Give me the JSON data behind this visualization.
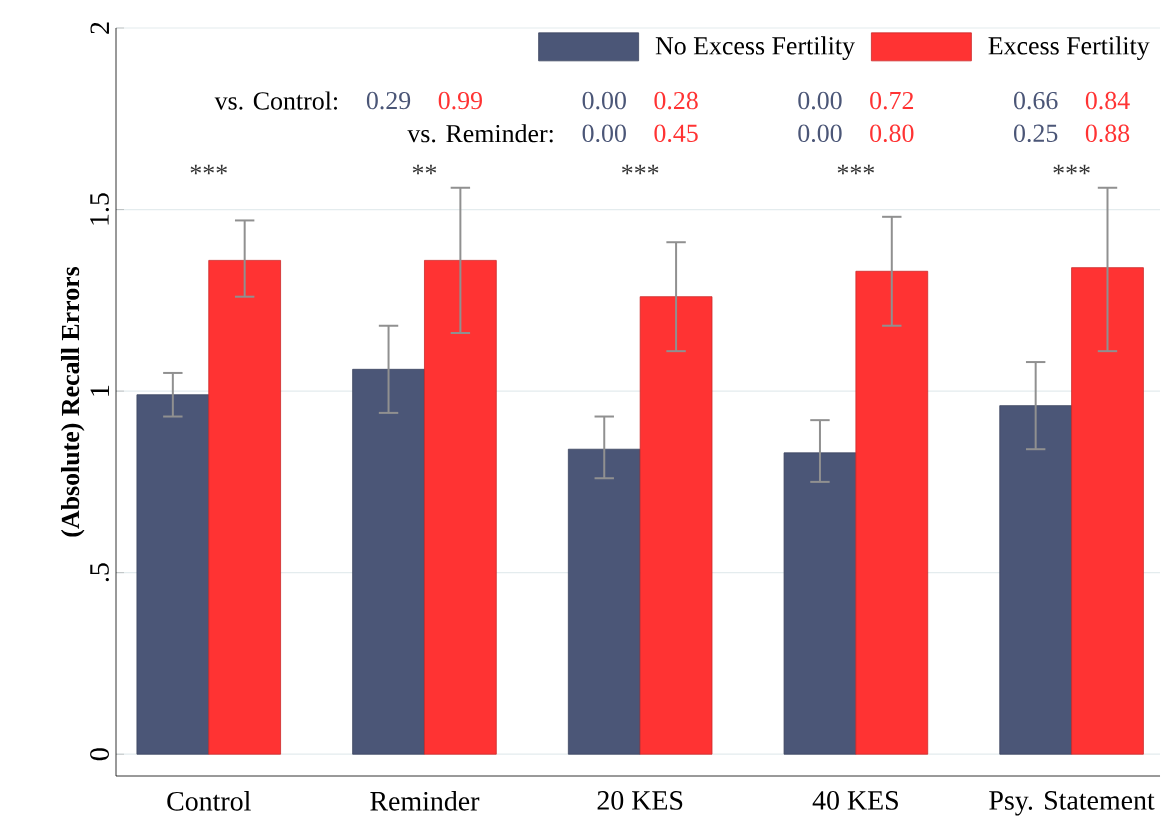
{
  "chart_data": {
    "type": "bar",
    "ylabel": "(Absolute) Recall Errors",
    "categories": [
      "Control",
      "Reminder",
      "20 KES",
      "40 KES",
      "Psy. Statement"
    ],
    "series": [
      {
        "name": "No Excess Fertility",
        "color": "#4b5677",
        "values": [
          0.99,
          1.06,
          0.84,
          0.83,
          0.96
        ],
        "errors": [
          [
            0.93,
            1.05
          ],
          [
            0.94,
            1.18
          ],
          [
            0.76,
            0.93
          ],
          [
            0.75,
            0.92
          ],
          [
            0.84,
            1.08
          ]
        ]
      },
      {
        "name": "Excess Fertility",
        "color": "#ff3333",
        "values": [
          1.36,
          1.36,
          1.26,
          1.33,
          1.34
        ],
        "errors": [
          [
            1.26,
            1.47
          ],
          [
            1.16,
            1.56
          ],
          [
            1.11,
            1.41
          ],
          [
            1.18,
            1.48
          ],
          [
            1.11,
            1.56
          ]
        ]
      }
    ],
    "ylim": [
      -0.06,
      2
    ],
    "yticks": [
      0,
      {
        "value": 0.5,
        "label": ".5"
      },
      1,
      1.5,
      2
    ],
    "grid": "y",
    "legend": "top right",
    "annotations": [
      "vs. Control:",
      "vs. Reminder:",
      "***",
      "**",
      "***",
      "***",
      "***",
      "0.29",
      "0.99",
      "0.00",
      "0.28",
      "0.00",
      "0.72",
      "0.66",
      "0.84",
      "0.00",
      "0.45",
      "0.00",
      "0.80",
      "0.25",
      "0.88"
    ]
  }
}
